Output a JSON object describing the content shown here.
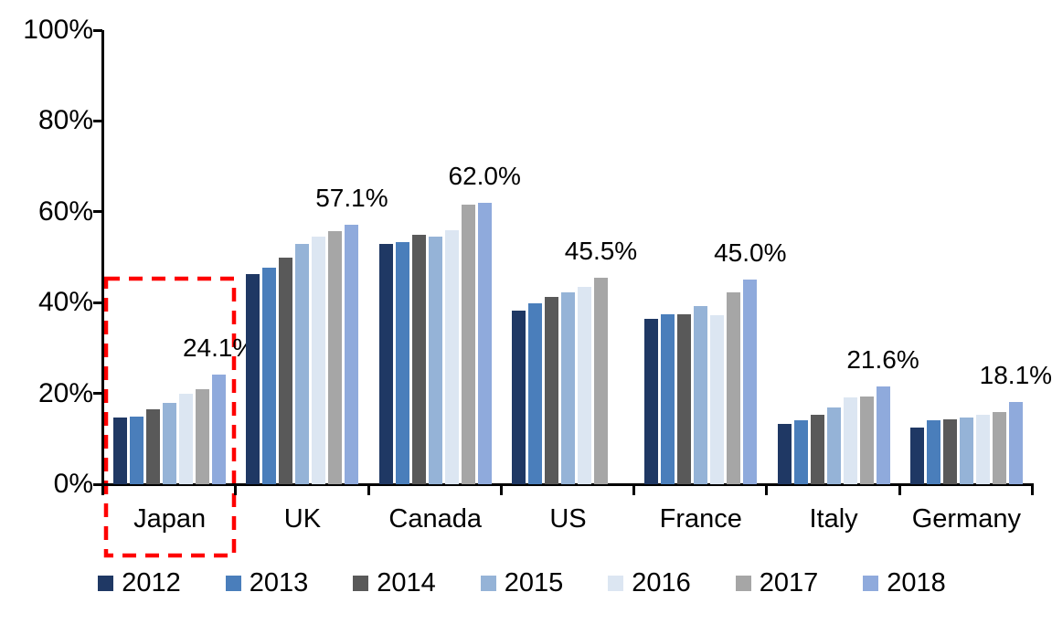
{
  "chart_data": {
    "type": "bar",
    "title": "",
    "categories": [
      "Japan",
      "UK",
      "Canada",
      "US",
      "France",
      "Italy",
      "Germany"
    ],
    "series": [
      {
        "name": "2012",
        "color": "#1F3864",
        "values": [
          14.6,
          46.2,
          53.0,
          38.2,
          36.4,
          13.2,
          12.5
        ]
      },
      {
        "name": "2013",
        "color": "#4A7EBB",
        "values": [
          14.8,
          47.6,
          53.4,
          39.9,
          37.5,
          14.1,
          14.0
        ]
      },
      {
        "name": "2014",
        "color": "#595959",
        "values": [
          16.4,
          49.8,
          54.9,
          41.2,
          37.5,
          15.3,
          14.3
        ]
      },
      {
        "name": "2015",
        "color": "#95B3D7",
        "values": [
          17.9,
          52.9,
          54.5,
          42.2,
          39.3,
          17.0,
          14.7
        ]
      },
      {
        "name": "2016",
        "color": "#DCE6F2",
        "values": [
          19.9,
          54.6,
          56.0,
          43.5,
          37.3,
          19.1,
          15.3
        ]
      },
      {
        "name": "2017",
        "color": "#A6A6A6",
        "values": [
          21.0,
          55.7,
          61.5,
          45.5,
          42.2,
          19.3,
          15.9
        ]
      },
      {
        "name": "2018",
        "color": "#8FAADC",
        "values": [
          24.1,
          57.1,
          62.0,
          null,
          45.0,
          21.6,
          18.1
        ]
      }
    ],
    "data_labels": [
      "24.1%",
      "57.1%",
      "62.0%",
      "45.5%",
      "45.0%",
      "21.6%",
      "18.1%"
    ],
    "ylim": [
      0,
      100
    ],
    "yticks": [
      "0%",
      "20%",
      "40%",
      "60%",
      "80%",
      "100%"
    ],
    "xlabel": "",
    "ylabel": "",
    "grid": false,
    "legend_position": "bottom",
    "legend_entries": [
      "2012",
      "2013",
      "2014",
      "2015",
      "2016",
      "2017",
      "2018"
    ],
    "annotation": {
      "type": "dashed-rectangle",
      "color": "#FE0000",
      "target_category": "Japan"
    }
  }
}
